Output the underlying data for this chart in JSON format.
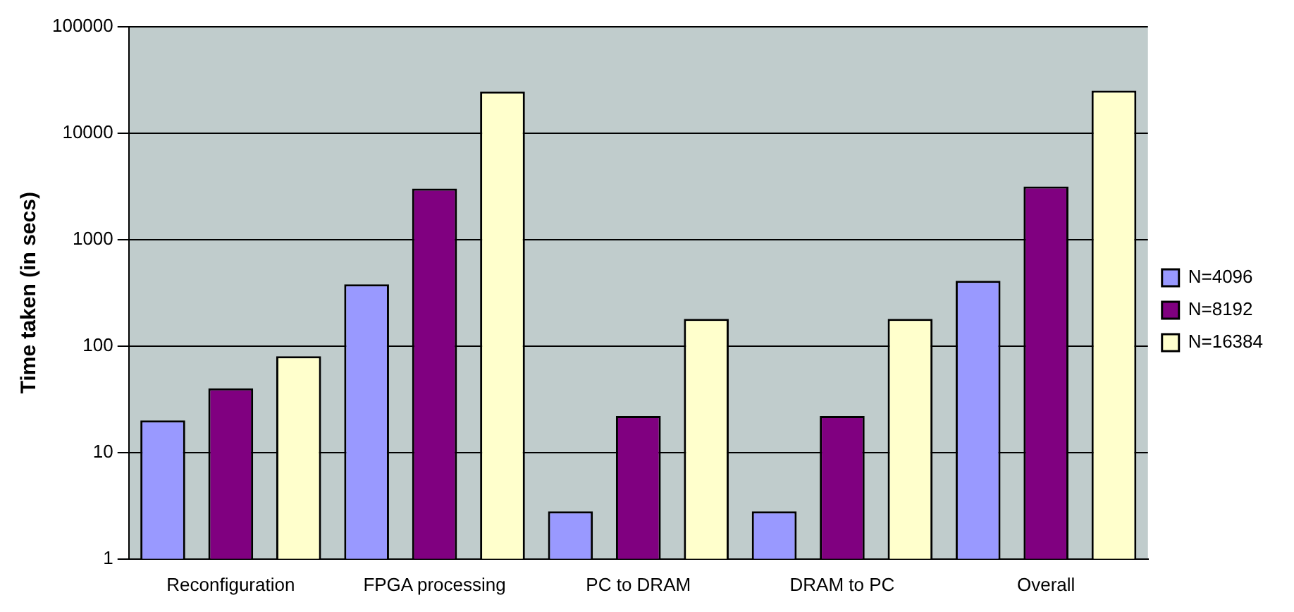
{
  "chart_data": {
    "type": "bar",
    "ylabel": "Time taken (in secs)",
    "categories": [
      "Reconfiguration",
      "FPGA processing",
      "PC to DRAM",
      "DRAM to PC",
      "Overall"
    ],
    "series": [
      {
        "name": "N=4096",
        "color": "#9999ff",
        "values": [
          20,
          380,
          2.8,
          2.8,
          410
        ]
      },
      {
        "name": "N=8192",
        "color": "#800080",
        "values": [
          40,
          3000,
          22,
          22,
          3150
        ]
      },
      {
        "name": "N=16384",
        "color": "#ffffcc",
        "values": [
          80,
          24500,
          180,
          180,
          25000
        ]
      }
    ],
    "log": "y",
    "ylim": [
      1,
      100000
    ],
    "yticks": [
      1,
      10,
      100,
      1000,
      10000,
      100000
    ],
    "grid": "y",
    "legend": "right"
  }
}
